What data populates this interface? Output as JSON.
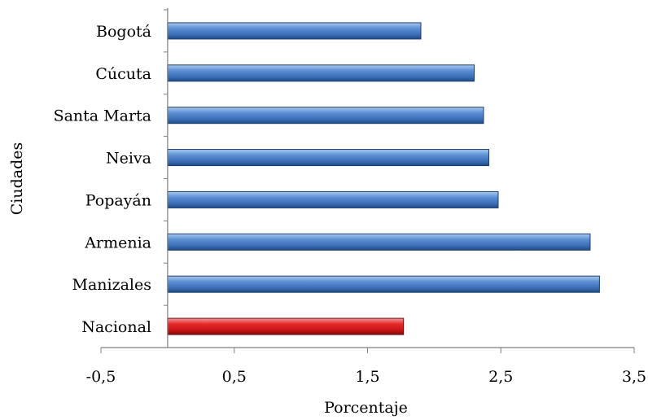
{
  "chart_data": {
    "type": "bar",
    "orientation": "horizontal",
    "categories": [
      "Bogotá",
      "Cúcuta",
      "Santa Marta",
      "Neiva",
      "Popayán",
      "Armenia",
      "Manizales",
      "Nacional"
    ],
    "values": [
      1.9,
      2.3,
      2.37,
      2.41,
      2.48,
      3.17,
      3.24,
      1.77
    ],
    "bar_colors": [
      "#4f81bd",
      "#4f81bd",
      "#4f81bd",
      "#4f81bd",
      "#4f81bd",
      "#4f81bd",
      "#4f81bd",
      "#d0191b"
    ],
    "xlabel": "Porcentaje",
    "ylabel": "Ciudades",
    "xlim": [
      -0.5,
      3.5
    ],
    "xticks": [
      -0.5,
      0.5,
      1.5,
      2.5,
      3.5
    ],
    "xtick_labels": [
      "-0,5",
      "0,5",
      "1,5",
      "2,5",
      "3,5"
    ],
    "grid": false,
    "legend": "none"
  }
}
